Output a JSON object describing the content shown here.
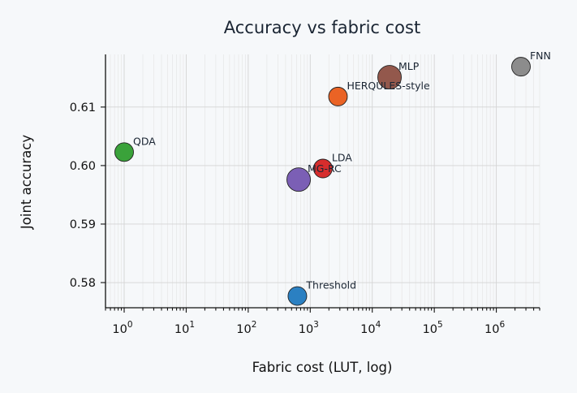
{
  "chart_data": {
    "type": "scatter",
    "title": "Accuracy vs fabric cost",
    "xlabel": "Fabric cost (LUT, log)",
    "ylabel": "Joint accuracy",
    "xscale": "log",
    "xlim": [
      0.5,
      5000000
    ],
    "ylim": [
      0.5757,
      0.619
    ],
    "x_ticks": [
      {
        "base": "10",
        "exp": "0",
        "value": 1
      },
      {
        "base": "10",
        "exp": "1",
        "value": 10
      },
      {
        "base": "10",
        "exp": "2",
        "value": 100
      },
      {
        "base": "10",
        "exp": "3",
        "value": 1000
      },
      {
        "base": "10",
        "exp": "4",
        "value": 10000
      },
      {
        "base": "10",
        "exp": "5",
        "value": 100000
      },
      {
        "base": "10",
        "exp": "6",
        "value": 1000000
      }
    ],
    "y_ticks": [
      {
        "label": "0.58",
        "value": 0.58
      },
      {
        "label": "0.59",
        "value": 0.59
      },
      {
        "label": "0.60",
        "value": 0.6
      },
      {
        "label": "0.61",
        "value": 0.61
      }
    ],
    "grid": true,
    "points": [
      {
        "label": "FNN",
        "x": 2500000,
        "y": 0.6169,
        "color": "#8c8c8c",
        "size": "small"
      },
      {
        "label": "MLP",
        "x": 19000,
        "y": 0.6151,
        "color": "#93584c",
        "size": "large"
      },
      {
        "label": "HERQULES-style",
        "x": 2800,
        "y": 0.6118,
        "color": "#ea6325",
        "size": "small"
      },
      {
        "label": "QDA",
        "x": 1,
        "y": 0.6023,
        "color": "#3aa23a",
        "size": "small"
      },
      {
        "label": "LDA",
        "x": 1600,
        "y": 0.5995,
        "color": "#d62d2d",
        "size": "small"
      },
      {
        "label": "MG-RC",
        "x": 650,
        "y": 0.5976,
        "color": "#7b5fb5",
        "size": "large"
      },
      {
        "label": "Threshold",
        "x": 620,
        "y": 0.5777,
        "color": "#2b80c2",
        "size": "small"
      }
    ]
  }
}
